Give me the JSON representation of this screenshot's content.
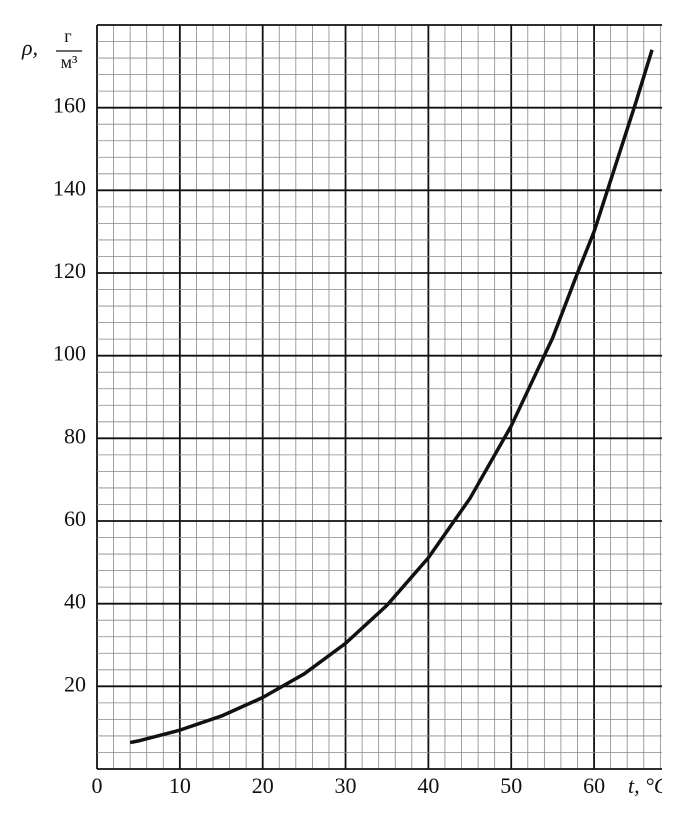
{
  "chart_data": {
    "type": "line",
    "x_label": "t, °C",
    "y_label": {
      "symbol": "ρ,",
      "numerator": "г",
      "denominator": "м³"
    },
    "xlim": [
      0,
      68.2
    ],
    "ylim": [
      0,
      180
    ],
    "xticks": [
      0,
      10,
      20,
      30,
      40,
      50,
      60
    ],
    "yticks": [
      20,
      40,
      60,
      80,
      100,
      120,
      140,
      160
    ],
    "xgrid": [
      0,
      2,
      4,
      6,
      8,
      10,
      12,
      14,
      16,
      18,
      20,
      22,
      24,
      26,
      28,
      30,
      32,
      34,
      36,
      38,
      40,
      42,
      44,
      46,
      48,
      50,
      52,
      54,
      56,
      58,
      60,
      62,
      64,
      66,
      68
    ],
    "ygrid": [
      0,
      4,
      8,
      12,
      16,
      20,
      24,
      28,
      32,
      36,
      40,
      44,
      48,
      52,
      56,
      60,
      64,
      68,
      72,
      76,
      80,
      84,
      88,
      92,
      96,
      100,
      104,
      108,
      112,
      116,
      120,
      124,
      128,
      132,
      136,
      140,
      144,
      148,
      152,
      156,
      160,
      164,
      168,
      172,
      176,
      180
    ],
    "grid": true,
    "series": [
      {
        "color": "#111111",
        "x": [
          4,
          5,
          10,
          15,
          20,
          25,
          30,
          35,
          40,
          45,
          50,
          55,
          58,
          60,
          65,
          67
        ],
        "values": [
          6.4,
          6.8,
          9.4,
          12.8,
          17.3,
          23,
          30.4,
          39.6,
          51.1,
          65.4,
          83,
          104.3,
          120,
          130,
          161,
          174
        ]
      }
    ]
  }
}
